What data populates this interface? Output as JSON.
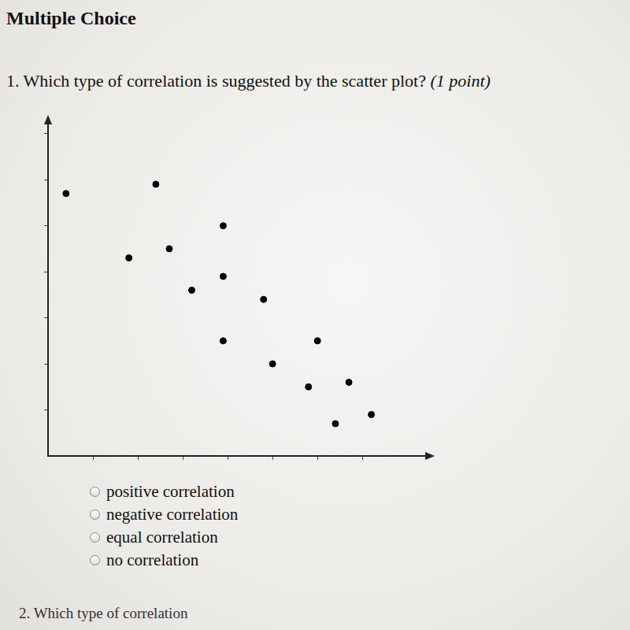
{
  "header": "Multiple Choice",
  "question": {
    "number": "1.",
    "text": "Which type of correlation is suggested by the scatter plot?",
    "points": "(1 point)"
  },
  "options": [
    "positive correlation",
    "negative correlation",
    "equal correlation",
    "no correlation"
  ],
  "next_question": "2. Which type of correlation",
  "chart_data": {
    "type": "scatter",
    "x": [
      0.4,
      2.4,
      1.8,
      2.7,
      3.9,
      3.9,
      3.2,
      4.8,
      3.9,
      6.0,
      5.0,
      5.8,
      6.7,
      6.4,
      7.2
    ],
    "values": [
      5.7,
      5.9,
      4.3,
      4.5,
      5.0,
      3.9,
      3.6,
      3.4,
      2.5,
      2.5,
      2.0,
      1.5,
      1.6,
      0.7,
      0.9
    ],
    "xlim": [
      0,
      8.4
    ],
    "ylim": [
      0,
      7.2
    ],
    "xticks": [
      1,
      2,
      3,
      4,
      5,
      6,
      7
    ],
    "yticks": [
      1,
      2,
      3,
      4,
      5,
      6,
      7
    ],
    "tick_labels": false,
    "grid": false,
    "color": "#000000"
  }
}
